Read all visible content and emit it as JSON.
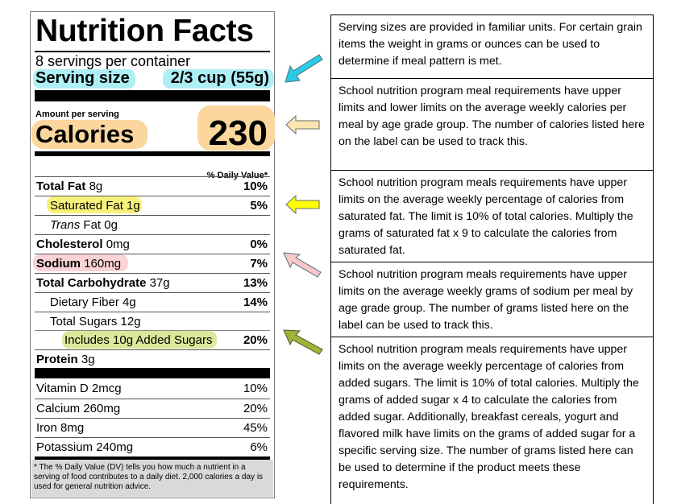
{
  "label": {
    "title": "Nutrition Facts",
    "servings_per_container": "8 servings per container",
    "serving_size_label": "Serving size",
    "serving_size_value": "2/3 cup (55g)",
    "amount_per_serving": "Amount per serving",
    "calories_label": "Calories",
    "calories_value": "230",
    "daily_value_header": "% Daily Value*",
    "nutrients": [
      {
        "name": "Total Fat",
        "amount": "8g",
        "dv": "10%"
      },
      {
        "name": "Saturated Fat 1g",
        "amount": "",
        "dv": "5%"
      },
      {
        "name": "Trans",
        "amount": "Fat 0g",
        "dv": ""
      },
      {
        "name": "Cholesterol",
        "amount": "0mg",
        "dv": "0%"
      },
      {
        "name": "Sodium",
        "amount": "160mg",
        "dv": "7%"
      },
      {
        "name": "Total Carbohydrate",
        "amount": "37g",
        "dv": "13%"
      },
      {
        "name": "Dietary Fiber 4g",
        "amount": "",
        "dv": "14%"
      },
      {
        "name": "Total Sugars 12g",
        "amount": "",
        "dv": ""
      },
      {
        "name": "Includes 10g Added Sugars",
        "amount": "",
        "dv": "20%"
      },
      {
        "name": "Protein",
        "amount": "3g",
        "dv": ""
      }
    ],
    "vitamins": [
      {
        "name": "Vitamin D 2mcg",
        "dv": "10%"
      },
      {
        "name": "Calcium 260mg",
        "dv": "20%"
      },
      {
        "name": "Iron 8mg",
        "dv": "45%"
      },
      {
        "name": "Potassium 240mg",
        "dv": "6%"
      }
    ],
    "footnote": "* The % Daily Value (DV) tells you how much a nutrient in a serving of food contributes to a daily diet. 2,000 calories a day is used for general nutrition advice."
  },
  "highlight_colors": {
    "serving": "#aeeef5",
    "calories": "#fbd79e",
    "saturated_fat": "#f8f27a",
    "sodium": "#f9d3d6",
    "added_sugars": "#dbe79a"
  },
  "arrow_colors": {
    "serving": "#27cde6",
    "calories": "#fde5b2",
    "saturated_fat": "#ffff00",
    "sodium": "#f9c8c8",
    "added_sugars": "#a4b23a"
  },
  "explanations": [
    "Serving sizes are provided in familiar units. For certain grain items the weight in grams or ounces can be used to determine if meal pattern is met.",
    "School nutrition program meal requirements have upper limits and lower limits on the average weekly calories per meal by age grade group. The number of calories listed here on the label can be used to track this.",
    "School nutrition program meals requirements have upper limits on the average weekly percentage of calories from saturated fat. The limit is 10% of total calories. Multiply the grams of saturated fat x 9 to calculate the calories from saturated fat.",
    "School nutrition program meals requirements have upper limits on the average weekly grams of sodium per meal by age grade group. The number of grams listed here on the label can be used to track this.",
    "School nutrition program meals requirements have upper limits on the average weekly percentage of calories from added sugars. The limit is 10% of total calories. Multiply the grams of added sugar x 4 to calculate the calories  from added sugar. Additionally, breakfast cereals, yogurt and flavored milk have limits on the grams of added sugar for a specific serving size. The number of grams listed here can be used to determine if the product meets these requirements."
  ]
}
